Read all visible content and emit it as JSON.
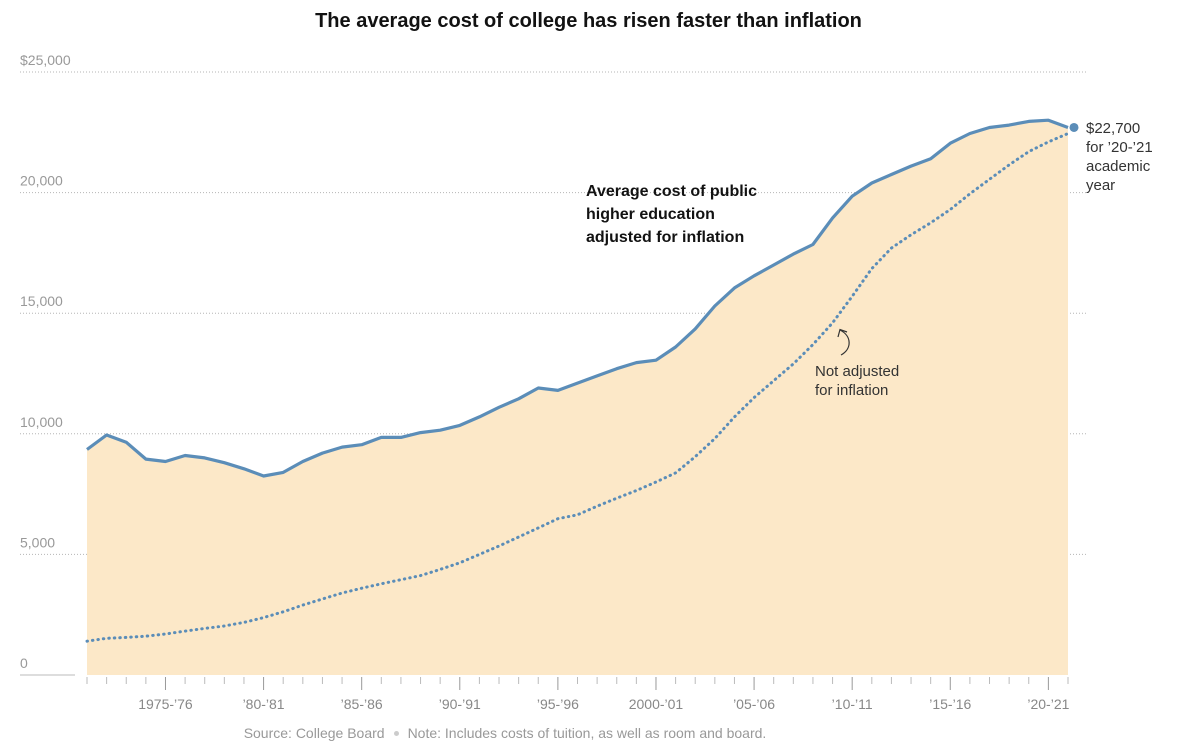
{
  "chart_data": {
    "type": "area",
    "title": "The average cost of college has risen faster than inflation",
    "x_start_year": 1971,
    "x_labels": [
      {
        "label": "1975-’76",
        "year": 1975
      },
      {
        "label": "’80-’81",
        "year": 1980
      },
      {
        "label": "’85-’86",
        "year": 1985
      },
      {
        "label": "’90-’91",
        "year": 1990
      },
      {
        "label": "’95-’96",
        "year": 1995
      },
      {
        "label": "2000-’01",
        "year": 2000
      },
      {
        "label": "’05-’06",
        "year": 2005
      },
      {
        "label": "’10-’11",
        "year": 2010
      },
      {
        "label": "’15-’16",
        "year": 2015
      },
      {
        "label": "’20-’21",
        "year": 2020
      }
    ],
    "y_ticks": [
      {
        "value": 25000,
        "label": "$25,000"
      },
      {
        "value": 20000,
        "label": "20,000"
      },
      {
        "value": 15000,
        "label": "15,000"
      },
      {
        "value": 10000,
        "label": "10,000"
      },
      {
        "value": 5000,
        "label": "5,000"
      },
      {
        "value": 0,
        "label": "0"
      }
    ],
    "ylim": [
      0,
      25000
    ],
    "grid": true,
    "series": [
      {
        "name": "Average cost of public higher education adjusted for inflation",
        "style": "solid-area",
        "color": "#5b8db8",
        "fill": "#fce8c8",
        "values": [
          9350,
          9950,
          9650,
          8950,
          8850,
          9100,
          9000,
          8800,
          8550,
          8250,
          8400,
          8850,
          9200,
          9450,
          9550,
          9850,
          9850,
          10050,
          10150,
          10350,
          10700,
          11100,
          11450,
          11900,
          11800,
          12100,
          12400,
          12700,
          12950,
          13050,
          13600,
          14350,
          15300,
          16050,
          16550,
          17000,
          17450,
          17850,
          18950,
          19850,
          20400,
          20750,
          21100,
          21400,
          22050,
          22450,
          22700,
          22800,
          22950,
          23000,
          22700
        ]
      },
      {
        "name": "Not adjusted for inflation",
        "style": "dotted",
        "color": "#5b8db8",
        "values": [
          1400,
          1520,
          1560,
          1610,
          1700,
          1820,
          1930,
          2030,
          2180,
          2380,
          2620,
          2900,
          3150,
          3400,
          3600,
          3780,
          3950,
          4120,
          4380,
          4650,
          5000,
          5350,
          5720,
          6100,
          6480,
          6640,
          7000,
          7330,
          7650,
          8000,
          8380,
          9050,
          9800,
          10700,
          11500,
          12200,
          12900,
          13700,
          14600,
          15700,
          16850,
          17700,
          18250,
          18750,
          19300,
          19950,
          20550,
          21150,
          21700,
          22100,
          22450
        ]
      }
    ],
    "annotations": {
      "adjusted_label": [
        "Average cost of public",
        "higher education",
        "adjusted for inflation"
      ],
      "not_adjusted_label": [
        "Not adjusted",
        "for inflation"
      ],
      "endpoint_label": [
        "$22,700",
        "for ’20-’21",
        "academic",
        "year"
      ]
    }
  },
  "footer": {
    "source": "Source: College Board",
    "note": "Note: Includes costs of tuition, as well as room and board."
  }
}
